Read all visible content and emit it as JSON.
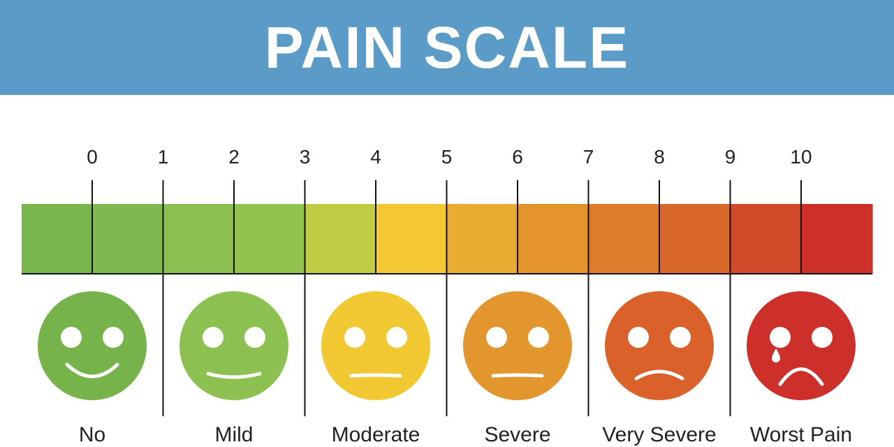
{
  "header": {
    "title": "PAIN SCALE",
    "background": "#5b9bc8"
  },
  "scale": {
    "ticks": [
      "0",
      "1",
      "2",
      "3",
      "4",
      "5",
      "6",
      "7",
      "8",
      "9",
      "10"
    ],
    "segment_colors": [
      "#78b54b",
      "#7db94f",
      "#8bbf4f",
      "#94c24e",
      "#bfcc44",
      "#f3c832",
      "#e9ab30",
      "#e4932d",
      "#df7c2b",
      "#d9672a",
      "#d24a2a",
      "#cc3028"
    ]
  },
  "faces": [
    {
      "label": "No",
      "color": "#77b34b",
      "mouth": "big-smile",
      "tear": false
    },
    {
      "label": "Mild",
      "color": "#8cc152",
      "mouth": "smile",
      "tear": false
    },
    {
      "label": "Moderate",
      "color": "#f2c832",
      "mouth": "flat",
      "tear": false
    },
    {
      "label": "Severe",
      "color": "#e3952e",
      "mouth": "flat",
      "tear": false
    },
    {
      "label": "Very Severe",
      "color": "#da622a",
      "mouth": "frown",
      "tear": false
    },
    {
      "label": "Worst Pain",
      "color": "#cd2f2a",
      "mouth": "big-frown",
      "tear": true
    }
  ]
}
